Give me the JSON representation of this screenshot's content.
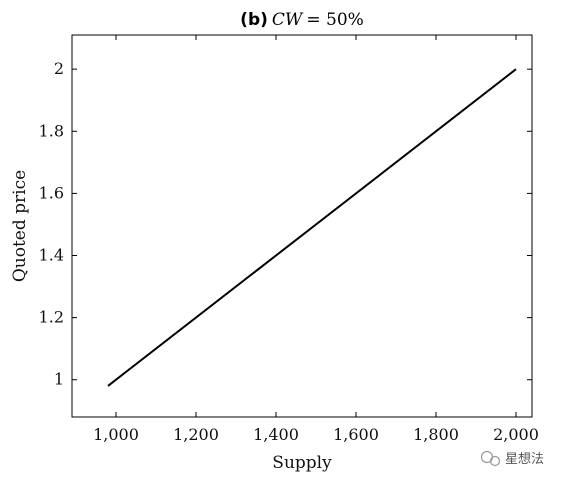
{
  "chart_data": {
    "type": "line",
    "title_prefix": "(b)",
    "title_math": "CW",
    "title_rest": " = 50%",
    "xlabel": "Supply",
    "ylabel": "Quoted price",
    "xlim": [
      890,
      2040
    ],
    "ylim": [
      0.88,
      2.11
    ],
    "xticks": [
      1000,
      1200,
      1400,
      1600,
      1800,
      2000
    ],
    "xtick_labels": [
      "1,000",
      "1,200",
      "1,400",
      "1,600",
      "1,800",
      "2,000"
    ],
    "yticks": [
      1,
      1.2,
      1.4,
      1.6,
      1.8,
      2
    ],
    "ytick_labels": [
      "1",
      "1.2",
      "1.4",
      "1.6",
      "1.8",
      "2"
    ],
    "grid": false,
    "series": [
      {
        "x": [
          980,
          2000
        ],
        "y": [
          0.98,
          2.0
        ],
        "color": "#000000"
      }
    ]
  },
  "watermark": {
    "text": "星想法"
  }
}
